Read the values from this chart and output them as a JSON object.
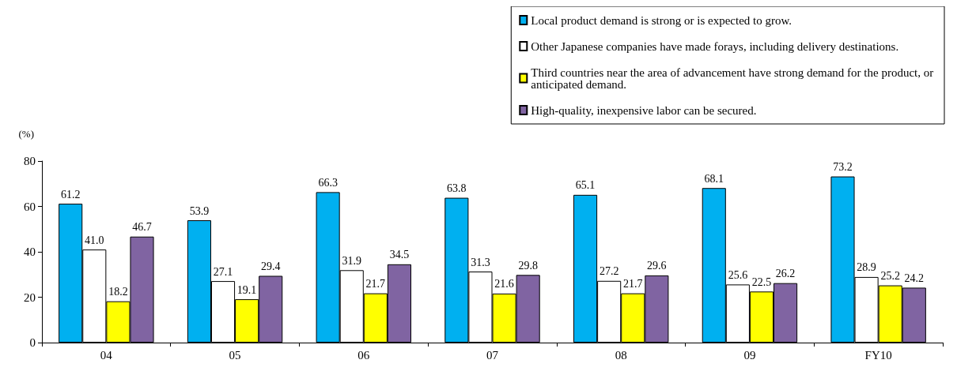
{
  "chart_data": {
    "type": "bar",
    "ylabel": "(%)",
    "categories": [
      "04",
      "05",
      "06",
      "07",
      "08",
      "09",
      "FY10"
    ],
    "series": [
      {
        "name": "Local product demand is strong or is expected to grow.",
        "color": "#00b0f0",
        "values": [
          61.2,
          53.9,
          66.3,
          63.8,
          65.1,
          68.1,
          73.2
        ],
        "value_labels": [
          "61.2",
          "53.9",
          "66.3",
          "63.8",
          "65.1",
          "68.1",
          "73.2"
        ]
      },
      {
        "name": "Other Japanese companies have made forays, including delivery destinations.",
        "color": "#ffffff",
        "values": [
          41.0,
          27.1,
          31.9,
          31.3,
          27.2,
          25.6,
          28.9
        ],
        "value_labels": [
          "41.0",
          "27.1",
          "31.9",
          "31.3",
          "27.2",
          "25.6",
          "28.9"
        ]
      },
      {
        "name": "Third countries near the area of advancement have strong demand for the product, or anticipated demand.",
        "color": "#ffff00",
        "values": [
          18.2,
          19.1,
          21.7,
          21.6,
          21.7,
          22.5,
          25.2
        ],
        "value_labels": [
          "18.2",
          "19.1",
          "21.7",
          "21.6",
          "21.7",
          "22.5",
          "25.2"
        ]
      },
      {
        "name": "High-quality, inexpensive labor can be secured.",
        "color": "#8064a2",
        "values": [
          46.7,
          29.4,
          34.5,
          29.8,
          29.6,
          26.2,
          24.2
        ],
        "value_labels": [
          "46.7",
          "29.4",
          "34.5",
          "29.8",
          "29.6",
          "26.2",
          "24.2"
        ]
      }
    ],
    "ylim": [
      0,
      80
    ],
    "yticks": [
      0,
      20,
      40,
      60,
      80
    ],
    "grid": false,
    "legend": "top right"
  }
}
